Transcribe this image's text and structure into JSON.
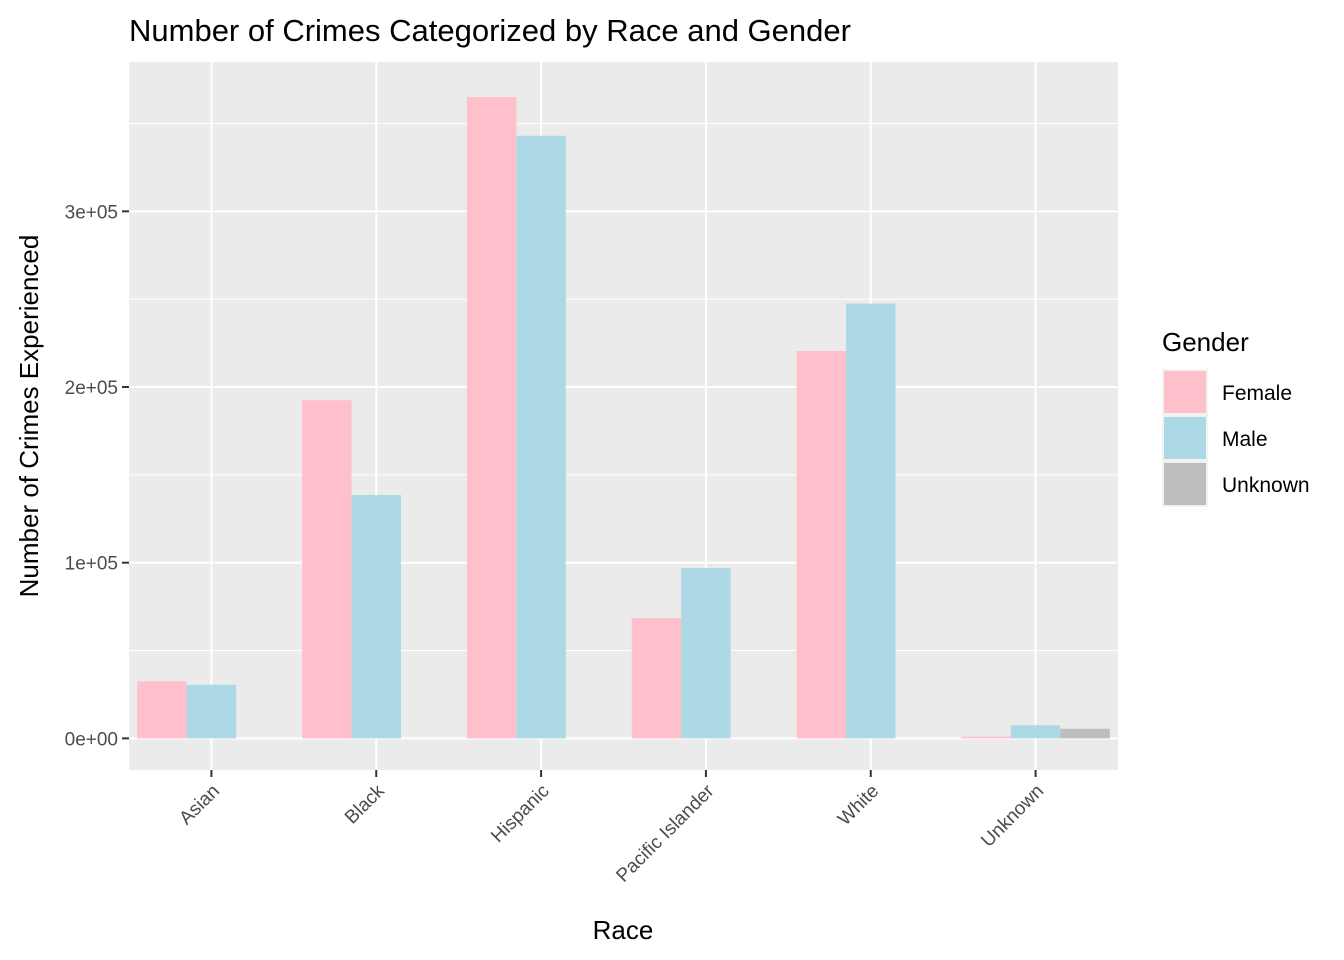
{
  "chart_data": {
    "type": "bar",
    "title": "Number of Crimes Categorized by Race and Gender",
    "xlabel": "Race",
    "ylabel": "Number of Crimes Experienced",
    "categories": [
      "Asian",
      "Black",
      "Hispanic",
      "Pacific Islander",
      "White",
      "Unknown"
    ],
    "series": [
      {
        "name": "Female",
        "color": "#FFC0CB",
        "values": [
          32500,
          192500,
          365000,
          68500,
          220500,
          1000
        ]
      },
      {
        "name": "Male",
        "color": "#ADD8E6",
        "values": [
          30500,
          138500,
          343000,
          97000,
          247500,
          7500
        ]
      },
      {
        "name": "Unknown",
        "color": "#BEBEBE",
        "values": [
          null,
          null,
          null,
          null,
          null,
          5500
        ]
      }
    ],
    "ylim": [
      -18000,
      385000
    ],
    "yticks": [
      0,
      100000,
      200000,
      300000
    ],
    "ytick_labels": [
      "0e+00",
      "1e+05",
      "2e+05",
      "3e+05"
    ],
    "legend": {
      "title": "Gender",
      "position": "right"
    },
    "grid": true,
    "panel_background": "#EBEBEB"
  }
}
